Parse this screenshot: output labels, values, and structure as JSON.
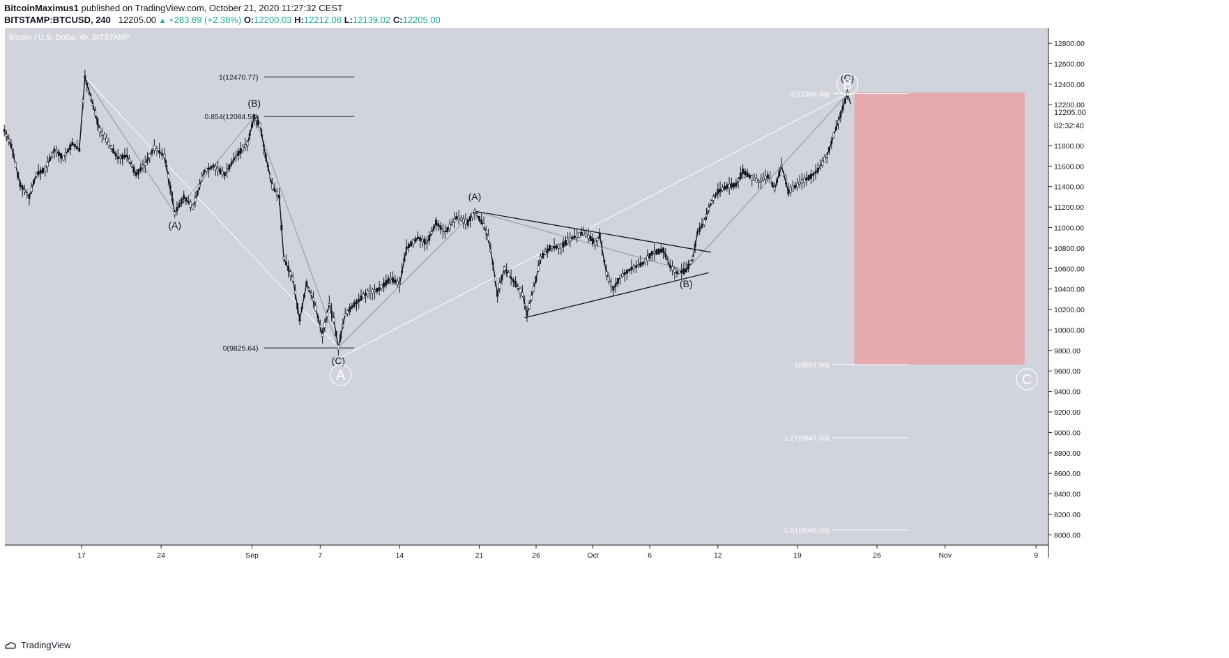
{
  "header": {
    "author": "BitcoinMaximus1",
    "published": "published on TradingView.com, October 21, 2020 11:27:32 CEST",
    "symbol": "BITSTAMP:BTCUSD, 240",
    "last": "12205.00",
    "change": "+283.89 (+2.38%)",
    "o_label": "O:",
    "o_value": "12200.03",
    "h_label": "H:",
    "h_value": "12212.08",
    "l_label": "L:",
    "l_value": "12139.02",
    "c_label": "C:",
    "c_value": "12205.00"
  },
  "footer": {
    "brand": "TradingView"
  },
  "colors": {
    "background": "#d1d4dc",
    "candle": "#131722",
    "short_zone": "#e6a2a8",
    "white": "#ffffff"
  },
  "chart_data": {
    "type": "line",
    "title": "Bitcoin / U.S. Dollar, 4h, BITSTAMP",
    "currency": "USD",
    "last_price": "12205.00",
    "countdown": "02:32:40",
    "x_ticks": [
      {
        "label": "17",
        "t": 0
      },
      {
        "label": "24",
        "t": 7
      },
      {
        "label": "Sep",
        "t": 15
      },
      {
        "label": "7",
        "t": 21
      },
      {
        "label": "14",
        "t": 28
      },
      {
        "label": "21",
        "t": 35
      },
      {
        "label": "26",
        "t": 40
      },
      {
        "label": "Oct",
        "t": 45
      },
      {
        "label": "6",
        "t": 50
      },
      {
        "label": "12",
        "t": 56
      },
      {
        "label": "19",
        "t": 63
      },
      {
        "label": "26",
        "t": 70
      },
      {
        "label": "Nov",
        "t": 76
      },
      {
        "label": "9",
        "t": 84
      }
    ],
    "y_ticks": [
      8000,
      8200,
      8400,
      8600,
      8800,
      9000,
      9200,
      9400,
      9600,
      9800,
      10000,
      10200,
      10400,
      10600,
      10800,
      11000,
      11200,
      11400,
      11600,
      11800,
      12000,
      12200,
      12400,
      12600,
      12800
    ],
    "ylim": [
      7900,
      12950
    ],
    "xlim": [
      -6.8,
      84.5
    ],
    "price_path": [
      [
        -6.8,
        11950
      ],
      [
        -6.2,
        11800
      ],
      [
        -5.4,
        11420
      ],
      [
        -4.6,
        11300
      ],
      [
        -4.0,
        11520
      ],
      [
        -3.2,
        11570
      ],
      [
        -2.4,
        11760
      ],
      [
        -1.6,
        11680
      ],
      [
        -0.8,
        11820
      ],
      [
        -0.2,
        11760
      ],
      [
        0.3,
        12470
      ],
      [
        1.0,
        12200
      ],
      [
        1.6,
        11950
      ],
      [
        2.4,
        11820
      ],
      [
        3.2,
        11680
      ],
      [
        4.0,
        11700
      ],
      [
        4.8,
        11520
      ],
      [
        5.6,
        11620
      ],
      [
        6.4,
        11780
      ],
      [
        7.3,
        11700
      ],
      [
        7.8,
        11400
      ],
      [
        8.2,
        11140
      ],
      [
        9.0,
        11300
      ],
      [
        9.8,
        11200
      ],
      [
        10.8,
        11550
      ],
      [
        11.6,
        11600
      ],
      [
        12.6,
        11520
      ],
      [
        13.6,
        11700
      ],
      [
        14.6,
        11820
      ],
      [
        15.2,
        12084
      ],
      [
        15.7,
        12000
      ],
      [
        16.2,
        11700
      ],
      [
        16.8,
        11400
      ],
      [
        17.4,
        11300
      ],
      [
        17.8,
        10700
      ],
      [
        18.6,
        10500
      ],
      [
        19.2,
        10100
      ],
      [
        19.8,
        10450
      ],
      [
        20.4,
        10300
      ],
      [
        21.2,
        9950
      ],
      [
        21.8,
        10250
      ],
      [
        22.2,
        10100
      ],
      [
        22.6,
        9830
      ],
      [
        23.2,
        10150
      ],
      [
        24.0,
        10250
      ],
      [
        25.0,
        10350
      ],
      [
        26.2,
        10400
      ],
      [
        27.2,
        10500
      ],
      [
        28.0,
        10450
      ],
      [
        28.6,
        10800
      ],
      [
        29.6,
        10900
      ],
      [
        30.4,
        10850
      ],
      [
        31.2,
        11050
      ],
      [
        32.0,
        10950
      ],
      [
        33.0,
        11100
      ],
      [
        34.0,
        11050
      ],
      [
        34.6,
        11160
      ],
      [
        35.4,
        11020
      ],
      [
        35.8,
        10900
      ],
      [
        36.2,
        10650
      ],
      [
        36.6,
        10350
      ],
      [
        37.2,
        10600
      ],
      [
        38.2,
        10450
      ],
      [
        38.8,
        10350
      ],
      [
        39.2,
        10150
      ],
      [
        39.8,
        10400
      ],
      [
        40.4,
        10700
      ],
      [
        41.2,
        10800
      ],
      [
        42.2,
        10820
      ],
      [
        43.2,
        10900
      ],
      [
        44.2,
        10950
      ],
      [
        45.2,
        10850
      ],
      [
        45.6,
        10920
      ],
      [
        46.2,
        10550
      ],
      [
        46.8,
        10400
      ],
      [
        47.4,
        10520
      ],
      [
        48.4,
        10600
      ],
      [
        49.4,
        10650
      ],
      [
        50.2,
        10750
      ],
      [
        51.2,
        10780
      ],
      [
        51.8,
        10620
      ],
      [
        52.4,
        10560
      ],
      [
        53.2,
        10580
      ],
      [
        53.8,
        10700
      ],
      [
        54.2,
        10950
      ],
      [
        54.8,
        11050
      ],
      [
        55.4,
        11250
      ],
      [
        56.0,
        11350
      ],
      [
        56.8,
        11400
      ],
      [
        57.6,
        11420
      ],
      [
        58.2,
        11550
      ],
      [
        58.8,
        11500
      ],
      [
        59.6,
        11450
      ],
      [
        60.4,
        11500
      ],
      [
        61.0,
        11380
      ],
      [
        61.6,
        11600
      ],
      [
        62.2,
        11350
      ],
      [
        62.8,
        11400
      ],
      [
        63.4,
        11450
      ],
      [
        64.2,
        11500
      ],
      [
        64.8,
        11560
      ],
      [
        65.6,
        11700
      ],
      [
        66.2,
        11900
      ],
      [
        66.8,
        12100
      ],
      [
        67.4,
        12306
      ],
      [
        67.7,
        12205
      ]
    ],
    "wave_lines": [
      {
        "points": [
          [
            0.3,
            12470
          ],
          [
            8.2,
            11140
          ],
          [
            15.2,
            12084
          ],
          [
            22.6,
            9830
          ]
        ],
        "color": "#8f939b",
        "width": 1
      },
      {
        "points": [
          [
            0.3,
            12470
          ],
          [
            22.6,
            9830
          ]
        ],
        "color": "#ffffff",
        "width": 1
      },
      {
        "points": [
          [
            22.6,
            9830
          ],
          [
            34.6,
            11160
          ],
          [
            53.2,
            10580
          ],
          [
            67.4,
            12306
          ]
        ],
        "color": "#8f939b",
        "width": 1
      },
      {
        "points": [
          [
            22.6,
            9720
          ],
          [
            67.4,
            12306
          ]
        ],
        "color": "#ffffff",
        "width": 1
      },
      {
        "points": [
          [
            34.6,
            11160
          ],
          [
            55.4,
            10760
          ]
        ],
        "color": "#131722",
        "width": 1.3
      },
      {
        "points": [
          [
            39.0,
            10120
          ],
          [
            55.2,
            10560
          ]
        ],
        "color": "#131722",
        "width": 1.3
      },
      {
        "points": [
          [
            68.0,
            12240
          ],
          [
            83.0,
            9661.96
          ]
        ],
        "color": "#f0b8a0",
        "width": 1.2
      }
    ],
    "short_zone": {
      "t0": 68.0,
      "t1": 83.0,
      "top": 12320,
      "bottom": 9661.96
    },
    "fib_left": [
      {
        "label": "1(12470.77)",
        "price": 12470.77,
        "t0": 11.2,
        "t1": 24.0
      },
      {
        "label": "0.854(12084.58)",
        "price": 12084.58,
        "t0": 11.2,
        "t1": 24.0
      },
      {
        "label": "0(9825.64)",
        "price": 9825.64,
        "t0": 11.2,
        "t1": 24.0
      }
    ],
    "fib_right": [
      {
        "label": "0(12306.88)",
        "price": 12306.88,
        "t0": 62.4,
        "t1": 72.8
      },
      {
        "label": "1(9661.96)",
        "price": 9661.96,
        "t0": 62.4,
        "t1": 72.8
      },
      {
        "label": "1.27(8947.83)",
        "price": 8947.83,
        "t0": 62.4,
        "t1": 72.8
      },
      {
        "label": "1.61(8048.56)",
        "price": 8048.56,
        "t0": 62.4,
        "t1": 72.8
      }
    ],
    "wave_labels": [
      {
        "text": "(A)",
        "t": 8.2,
        "price": 11140,
        "dy": 22
      },
      {
        "text": "(B)",
        "t": 15.2,
        "price": 12084,
        "dy": -14
      },
      {
        "text": "(C)",
        "t": 22.6,
        "price": 9830,
        "dy": 24
      },
      {
        "text": "(A)",
        "t": 34.6,
        "price": 11160,
        "dy": -16
      },
      {
        "text": "(B)",
        "t": 53.2,
        "price": 10580,
        "dy": 24
      },
      {
        "text": "(C)",
        "t": 67.4,
        "price": 12306,
        "dy": -18
      }
    ],
    "circle_labels": [
      {
        "text": "A",
        "t": 22.8,
        "price": 9560
      },
      {
        "text": "B",
        "t": 67.4,
        "price": 12400
      },
      {
        "text": "C",
        "t": 83.2,
        "price": 9520
      }
    ]
  }
}
